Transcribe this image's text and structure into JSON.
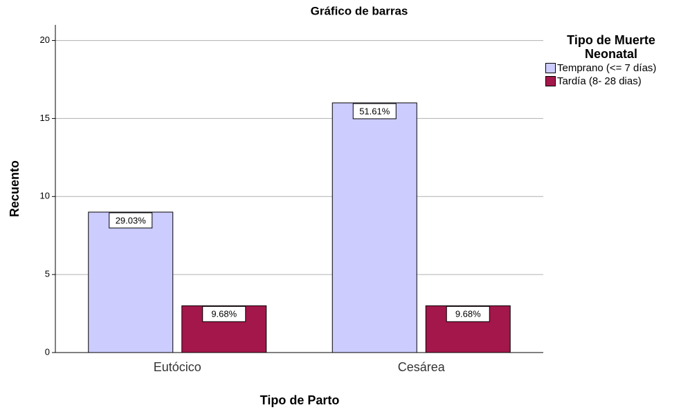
{
  "chart_data": {
    "type": "bar",
    "title": "Gráfico de barras",
    "x_label": "Tipo de Parto",
    "y_label": "Recuento",
    "legend_title": "Tipo de Muerte Neonatal",
    "categories": [
      "Eutócico",
      "Cesárea"
    ],
    "series": [
      {
        "name": "Temprano (<= 7 días)",
        "color": "#ccccff",
        "values": [
          9,
          16
        ],
        "value_labels": [
          "29.03%",
          "51.61%"
        ]
      },
      {
        "name": "Tardía (8- 28 dias)",
        "color": "#a3174b",
        "values": [
          3,
          3
        ],
        "value_labels": [
          "9.68%",
          "9.68%"
        ]
      }
    ],
    "ylim": [
      0,
      21
    ],
    "yticks": [
      0,
      5,
      10,
      15,
      20
    ],
    "grid": true,
    "legend": "right"
  }
}
